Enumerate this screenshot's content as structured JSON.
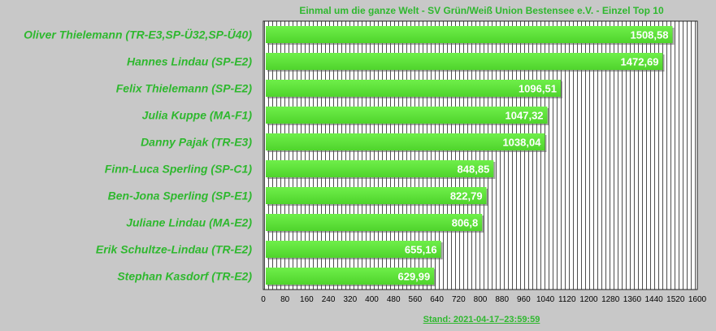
{
  "chart_data": {
    "type": "bar",
    "orientation": "horizontal",
    "title": "Einmal um die ganze Welt - SV Grün/Weiß Union Bestensee e.V. - Einzel Top 10",
    "categories": [
      "Oliver Thielemann (TR-E3,SP-Ü32,SP-Ü40)",
      "Hannes Lindau (SP-E2)",
      "Felix Thielemann (SP-E2)",
      "Julia Kuppe (MA-F1)",
      "Danny Pajak (TR-E3)",
      "Finn-Luca Sperling (SP-C1)",
      "Ben-Jona Sperling (SP-E1)",
      "Juliane Lindau (MA-E2)",
      "Erik Schultze-Lindau (TR-E2)",
      "Stephan Kasdorf (TR-E2)"
    ],
    "values": [
      1508.58,
      1472.69,
      1096.51,
      1047.32,
      1038.04,
      848.85,
      822.79,
      806.8,
      655.16,
      629.99
    ],
    "value_labels": [
      "1508,58",
      "1472,69",
      "1096,51",
      "1047,32",
      "1038,04",
      "848,85",
      "822,79",
      "806,8",
      "655,16",
      "629,99"
    ],
    "xlim": [
      0,
      1600
    ],
    "xticks": [
      0,
      80,
      160,
      240,
      320,
      400,
      480,
      560,
      640,
      720,
      800,
      880,
      960,
      1040,
      1120,
      1200,
      1280,
      1360,
      1440,
      1520,
      1600
    ],
    "grid": true,
    "bar_color": "#5ee43a",
    "label_color": "#2fb82f",
    "footer": "Stand: 2021-04-17–23:59:59"
  }
}
